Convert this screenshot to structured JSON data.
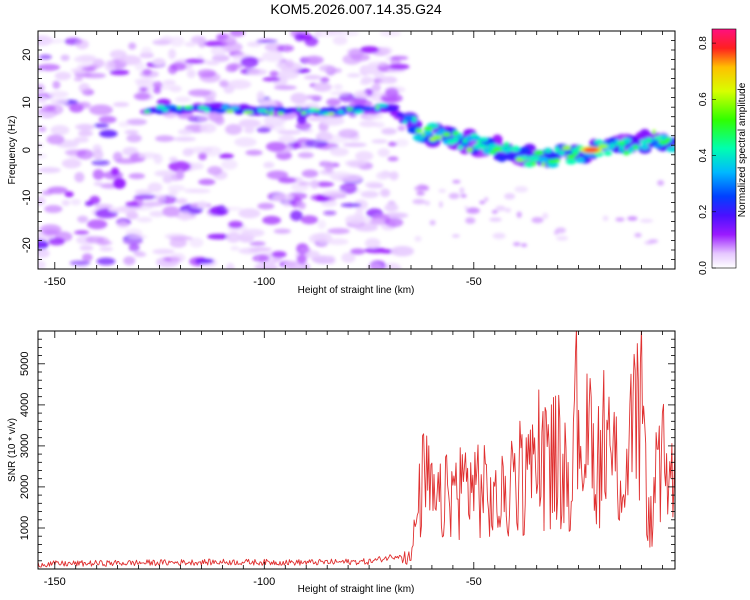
{
  "title": "KOM5.2026.007.14.35.G24",
  "chart_data": [
    {
      "id": "spectrogram",
      "type": "heatmap",
      "xlabel": "Height of straight line (km)",
      "ylabel": "Frequency (Hz)",
      "xlim": [
        -154,
        -2
      ],
      "ylim": [
        -25,
        25
      ],
      "xticks": [
        -150,
        -100,
        -50
      ],
      "yticks": [
        -20,
        -10,
        0,
        10,
        20
      ],
      "xtick_labels": [
        "-150",
        "-100",
        "-50"
      ],
      "ytick_labels": [
        "-20",
        "-10",
        "0",
        "10",
        "20"
      ],
      "colorbar": {
        "label": "Normalized spectral amplitude",
        "range": [
          0.0,
          0.85
        ],
        "ticks": [
          0.0,
          0.2,
          0.4,
          0.6,
          0.8
        ],
        "tick_labels": [
          "0.0",
          "0.2",
          "0.4",
          "0.6",
          "0.8"
        ]
      },
      "features": [
        {
          "name": "signal-track",
          "points": [
            [
              -128,
              8.5
            ],
            [
              -110,
              8.8
            ],
            [
              -95,
              8.0
            ],
            [
              -80,
              8.2
            ],
            [
              -70,
              9.0
            ],
            [
              -63,
              4.0
            ],
            [
              -55,
              2.5
            ],
            [
              -45,
              0.5
            ],
            [
              -35,
              -2.0
            ],
            [
              -28,
              -1.0
            ],
            [
              -20,
              0.0
            ],
            [
              -12,
              1.0
            ],
            [
              -5,
              2.5
            ],
            [
              -2,
              0.0
            ]
          ],
          "peak_at": [
            -22,
            0.0
          ],
          "peak_amplitude": 0.85
        },
        {
          "name": "noise-region",
          "x_range": [
            -154,
            -67
          ],
          "y_range": [
            -25,
            25
          ],
          "amplitude": 0.15
        }
      ]
    },
    {
      "id": "snr",
      "type": "line",
      "xlabel": "Height of straight line (km)",
      "ylabel": "SNR (10 * v/v)",
      "xlim": [
        -154,
        -2
      ],
      "ylim": [
        0,
        5800
      ],
      "xticks": [
        -150,
        -100,
        -50
      ],
      "yticks": [
        1000,
        2000,
        3000,
        4000,
        5000
      ],
      "xtick_labels": [
        "-150",
        "-100",
        "-50"
      ],
      "ytick_labels": [
        "1000",
        "2000",
        "3000",
        "4000",
        "5000"
      ],
      "color": "#e03030",
      "series": [
        {
          "name": "SNR",
          "x": [
            -154,
            -130,
            -110,
            -90,
            -75,
            -65,
            -62,
            -59,
            -55,
            -50,
            -45,
            -40,
            -35,
            -30,
            -28,
            -25,
            -22,
            -18,
            -14,
            -10,
            -8,
            -6,
            -4,
            -2
          ],
          "y": [
            120,
            150,
            170,
            160,
            180,
            400,
            3200,
            2100,
            2700,
            3100,
            2200,
            2800,
            3500,
            3900,
            2800,
            5400,
            3700,
            4000,
            3200,
            5800,
            1400,
            3100,
            3600,
            2900
          ]
        }
      ]
    }
  ]
}
